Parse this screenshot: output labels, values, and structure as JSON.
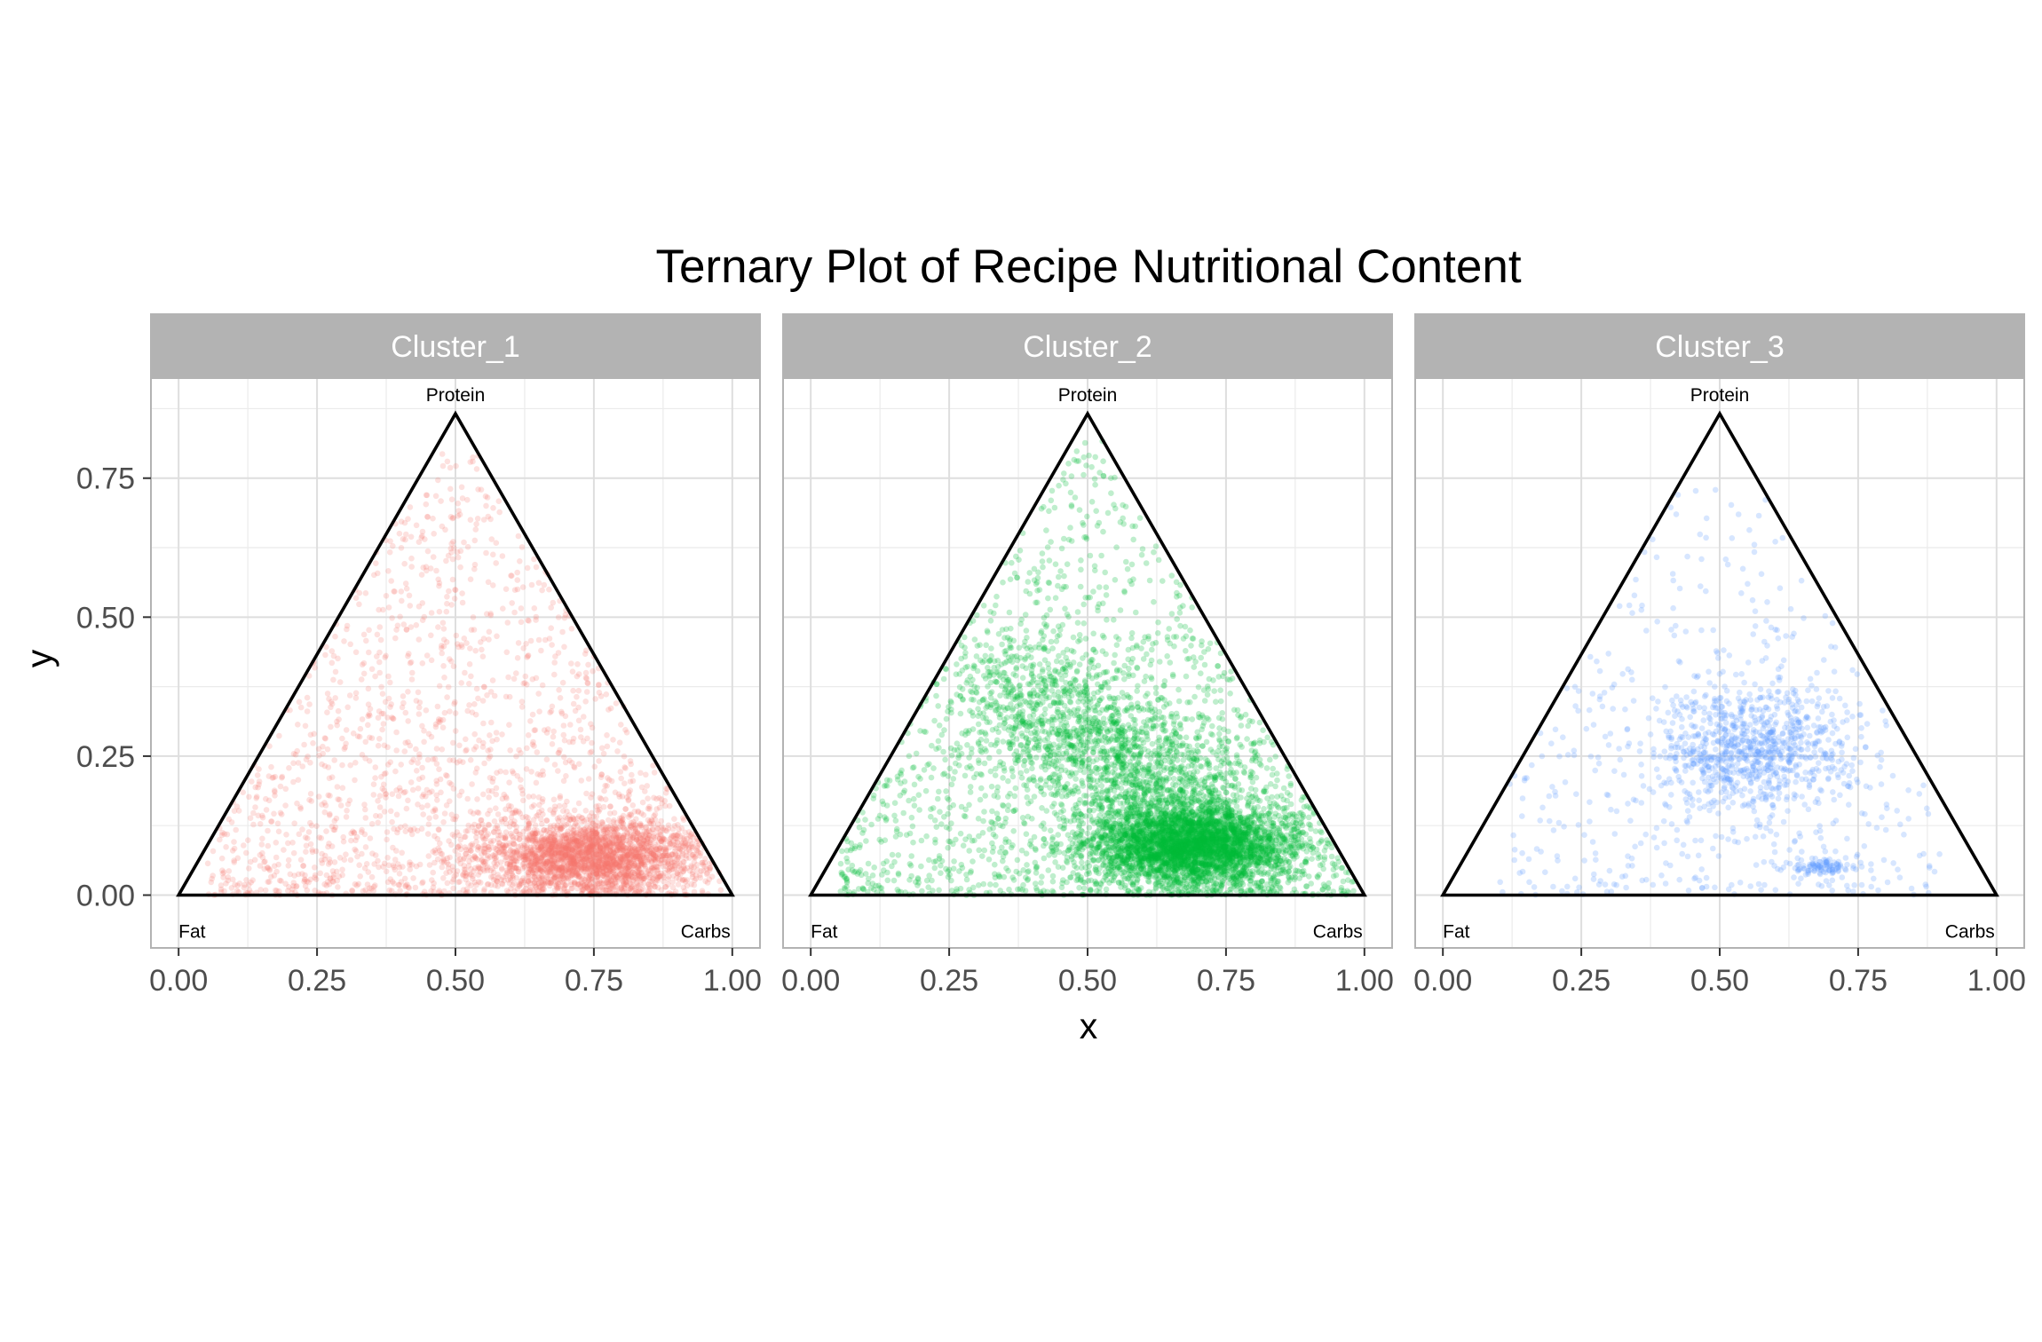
{
  "chart_data": {
    "type": "scatter",
    "title": "Ternary Plot of Recipe Nutritional Content",
    "xlabel": "x",
    "ylabel": "y",
    "xlim": [
      -0.05,
      1.05
    ],
    "ylim": [
      -0.095,
      0.93
    ],
    "x_ticks": [
      "0.00",
      "0.25",
      "0.50",
      "0.75",
      "1.00"
    ],
    "y_ticks": [
      "0.00",
      "0.25",
      "0.50",
      "0.75"
    ],
    "grid": true,
    "vertex_labels": {
      "fat": "Fat",
      "carbs": "Carbs",
      "protein": "Protein"
    },
    "triangle": {
      "fat": [
        0,
        0
      ],
      "carbs": [
        1,
        0
      ],
      "protein": [
        0.5,
        0.866
      ]
    },
    "panels": [
      {
        "name": "Cluster_1",
        "color": "#F8766D",
        "n_points": 4000,
        "point_opacity": 0.22,
        "mass_center": [
          0.74,
          0.07
        ],
        "spread": [
          0.1,
          0.035
        ],
        "core_fraction": 0.5,
        "diffuse_range": {
          "x": [
            0.05,
            0.98
          ],
          "y": [
            0.0,
            0.8
          ]
        }
      },
      {
        "name": "Cluster_2",
        "color": "#00BA38",
        "n_points": 7000,
        "point_opacity": 0.25,
        "mass_center": [
          0.68,
          0.09
        ],
        "spread": [
          0.09,
          0.035
        ],
        "ridge_from": [
          0.35,
          0.38
        ],
        "ridge_to": [
          0.82,
          0.06
        ],
        "core_fraction": 0.4,
        "diffuse_range": {
          "x": [
            0.05,
            1.0
          ],
          "y": [
            0.0,
            0.82
          ]
        }
      },
      {
        "name": "Cluster_3",
        "color": "#619CFF",
        "n_points": 1400,
        "point_opacity": 0.25,
        "mass_center": [
          0.55,
          0.26
        ],
        "spread": [
          0.09,
          0.06
        ],
        "cluster_spot": [
          0.68,
          0.05
        ],
        "core_fraction": 0.55,
        "diffuse_range": {
          "x": [
            0.1,
            0.9
          ],
          "y": [
            0.0,
            0.73
          ]
        }
      }
    ]
  }
}
